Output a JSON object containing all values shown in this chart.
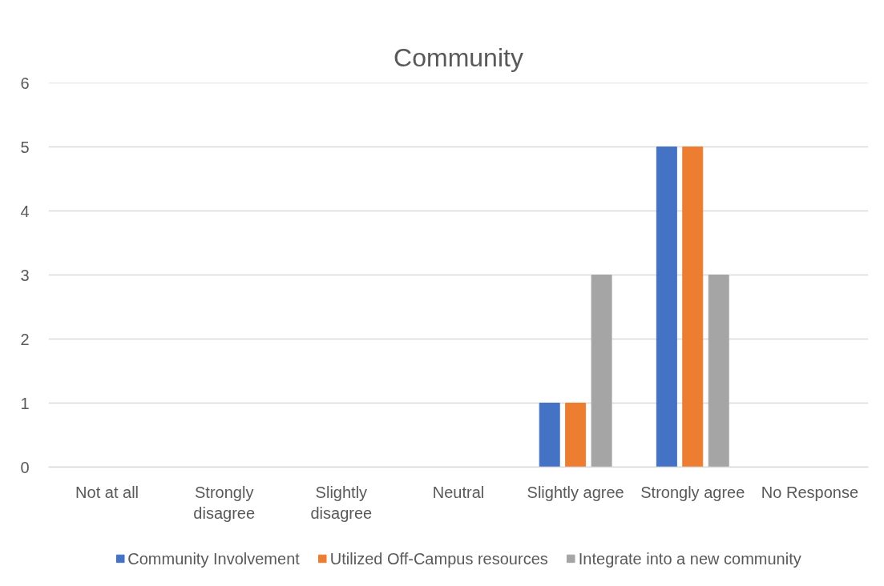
{
  "chart_data": {
    "type": "bar",
    "title": "Community",
    "categories": [
      "Not at all",
      "Strongly disagree",
      "Slightly disagree",
      "Neutral",
      "Slightly agree",
      "Strongly agree",
      "No Response"
    ],
    "series": [
      {
        "name": "Community Involvement",
        "color": "#4472c4",
        "values": [
          0,
          0,
          0,
          0,
          1,
          5,
          0
        ]
      },
      {
        "name": "Utilized Off-Campus resources",
        "color": "#ed7d31",
        "values": [
          0,
          0,
          0,
          0,
          1,
          5,
          0
        ]
      },
      {
        "name": "Integrate into a new community",
        "color": "#a5a5a5",
        "values": [
          0,
          0,
          0,
          0,
          3,
          3,
          0
        ]
      }
    ],
    "ylim": [
      0,
      6
    ],
    "yticks": [
      0,
      1,
      2,
      3,
      4,
      5,
      6
    ],
    "grid": "y",
    "legend": "bottom"
  }
}
